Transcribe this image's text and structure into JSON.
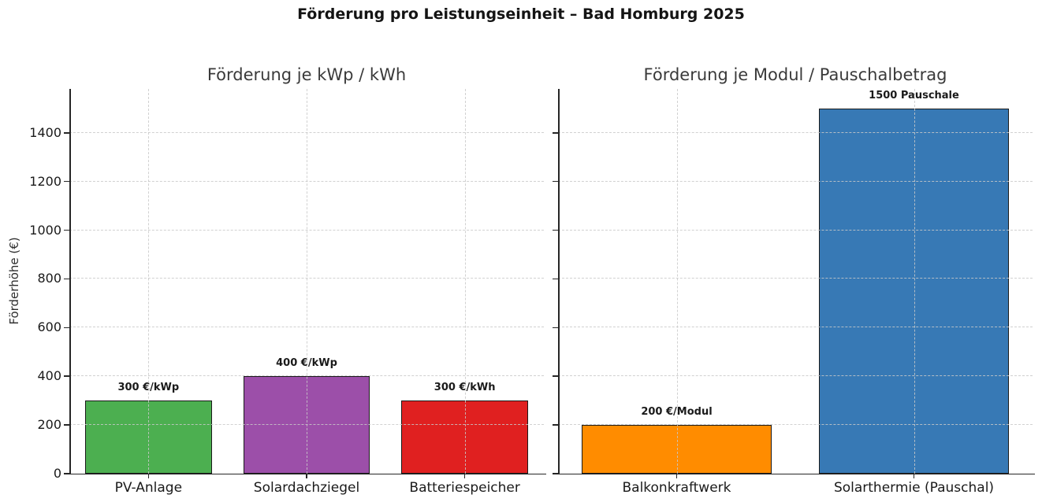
{
  "figure": {
    "title": "Förderung pro Leistungseinheit – Bad Homburg 2025",
    "ylabel": "Förderhöhe (€)"
  },
  "chart_data": [
    {
      "type": "bar",
      "title": "Förderung je kWp / kWh",
      "categories": [
        "PV-Anlage",
        "Solardachziegel",
        "Batteriespeicher"
      ],
      "values": [
        300,
        400,
        300
      ],
      "bar_labels": [
        "300 €/kWp",
        "400 €/kWp",
        "300 €/kWh"
      ],
      "colors": [
        "#4CAF50",
        "#9C4FA9",
        "#E02020"
      ],
      "bar_edge_color": "#1a1a1a",
      "ylim": [
        0,
        1580
      ],
      "yticks": [
        0,
        200,
        400,
        600,
        800,
        1000,
        1200,
        1400
      ],
      "ytick_labels_visible": true,
      "grid": "dashed",
      "legend": "none"
    },
    {
      "type": "bar",
      "title": "Förderung je Modul / Pauschalbetrag",
      "categories": [
        "Balkonkraftwerk",
        "Solarthermie (Pauschal)"
      ],
      "values": [
        200,
        1500
      ],
      "bar_labels": [
        "200 €/Modul",
        "1500 Pauschale"
      ],
      "colors": [
        "#FF8C00",
        "#3779B5"
      ],
      "bar_edge_color": "#1a1a1a",
      "ylim": [
        0,
        1580
      ],
      "yticks": [
        0,
        200,
        400,
        600,
        800,
        1000,
        1200,
        1400
      ],
      "ytick_labels_visible": false,
      "grid": "dashed",
      "legend": "none"
    }
  ]
}
